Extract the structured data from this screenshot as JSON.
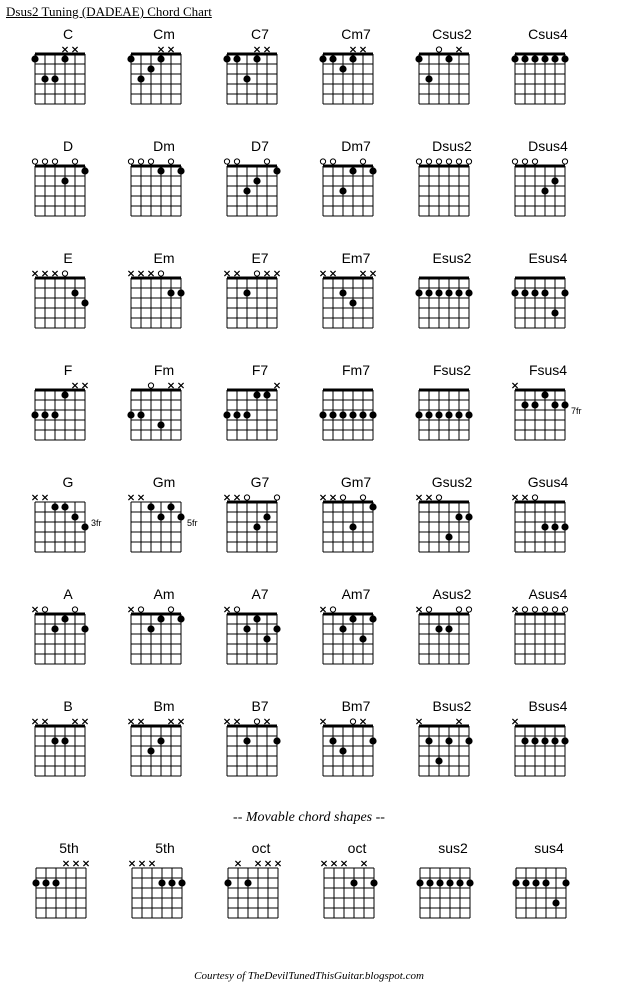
{
  "title": "Dsus2 Tuning (DADEAE) Chord Chart",
  "subheader": "-- Movable chord shapes --",
  "footer": "Courtesy of TheDevilTunedThisGuitar.blogspot.com",
  "styling": {
    "strings": 6,
    "frets": 5,
    "string_spacing": 10,
    "fret_spacing": 10,
    "dot_radius": 3.6,
    "line_color": "#000000",
    "background": "#ffffff",
    "nut_thickness": 3,
    "grid_thickness": 1,
    "marker_font_size": 8
  },
  "rows": [
    [
      {
        "name": "C",
        "markers": [
          "",
          "",
          "",
          "x",
          "x",
          ""
        ],
        "startFret": 0,
        "dots": [
          [
            1,
            1
          ],
          [
            1,
            4
          ],
          [
            3,
            2
          ],
          [
            3,
            3
          ]
        ],
        "fretLabel": ""
      },
      {
        "name": "Cm",
        "markers": [
          "",
          "",
          "",
          "x",
          "x",
          ""
        ],
        "startFret": 0,
        "dots": [
          [
            1,
            1
          ],
          [
            1,
            4
          ],
          [
            2,
            3
          ],
          [
            3,
            2
          ]
        ],
        "fretLabel": ""
      },
      {
        "name": "C7",
        "markers": [
          "",
          "",
          "",
          "x",
          "x",
          ""
        ],
        "startFret": 0,
        "dots": [
          [
            1,
            1
          ],
          [
            1,
            2
          ],
          [
            1,
            4
          ],
          [
            3,
            3
          ]
        ],
        "fretLabel": ""
      },
      {
        "name": "Cm7",
        "markers": [
          "",
          "",
          "",
          "x",
          "x",
          ""
        ],
        "startFret": 0,
        "dots": [
          [
            1,
            1
          ],
          [
            1,
            2
          ],
          [
            1,
            4
          ],
          [
            2,
            3
          ]
        ],
        "fretLabel": ""
      },
      {
        "name": "Csus2",
        "markers": [
          "",
          "",
          "o",
          "",
          "x",
          ""
        ],
        "startFret": 0,
        "dots": [
          [
            1,
            1
          ],
          [
            1,
            4
          ],
          [
            3,
            2
          ]
        ],
        "fretLabel": ""
      },
      {
        "name": "Csus4",
        "markers": [
          "",
          "",
          "",
          "",
          "",
          ""
        ],
        "startFret": 0,
        "dots": [
          [
            1,
            1
          ],
          [
            1,
            2
          ],
          [
            1,
            3
          ],
          [
            1,
            4
          ],
          [
            1,
            5
          ],
          [
            1,
            6
          ]
        ],
        "fretLabel": ""
      }
    ],
    [
      {
        "name": "D",
        "markers": [
          "o",
          "o",
          "o",
          "",
          "o",
          ""
        ],
        "startFret": 0,
        "dots": [
          [
            1,
            6
          ],
          [
            2,
            4
          ]
        ],
        "fretLabel": ""
      },
      {
        "name": "Dm",
        "markers": [
          "o",
          "o",
          "o",
          "",
          "o",
          ""
        ],
        "startFret": 0,
        "dots": [
          [
            1,
            4
          ],
          [
            1,
            6
          ]
        ],
        "fretLabel": ""
      },
      {
        "name": "D7",
        "markers": [
          "o",
          "o",
          "",
          "",
          "o",
          ""
        ],
        "startFret": 0,
        "dots": [
          [
            1,
            6
          ],
          [
            2,
            4
          ],
          [
            3,
            3
          ]
        ],
        "fretLabel": ""
      },
      {
        "name": "Dm7",
        "markers": [
          "o",
          "o",
          "",
          "",
          "o",
          ""
        ],
        "startFret": 0,
        "dots": [
          [
            1,
            4
          ],
          [
            1,
            6
          ],
          [
            3,
            3
          ]
        ],
        "fretLabel": ""
      },
      {
        "name": "Dsus2",
        "markers": [
          "o",
          "o",
          "o",
          "o",
          "o",
          "o"
        ],
        "startFret": 0,
        "dots": [],
        "fretLabel": ""
      },
      {
        "name": "Dsus4",
        "markers": [
          "o",
          "o",
          "o",
          "",
          "",
          "o"
        ],
        "startFret": 0,
        "dots": [
          [
            2,
            5
          ],
          [
            3,
            4
          ]
        ],
        "fretLabel": ""
      }
    ],
    [
      {
        "name": "E",
        "markers": [
          "x",
          "x",
          "x",
          "o",
          "",
          ""
        ],
        "startFret": 0,
        "dots": [
          [
            2,
            5
          ],
          [
            3,
            6
          ]
        ],
        "fretLabel": ""
      },
      {
        "name": "Em",
        "markers": [
          "x",
          "x",
          "x",
          "o",
          "",
          ""
        ],
        "startFret": 0,
        "dots": [
          [
            2,
            5
          ],
          [
            2,
            6
          ]
        ],
        "fretLabel": ""
      },
      {
        "name": "E7",
        "markers": [
          "x",
          "x",
          "",
          "o",
          "x",
          "x"
        ],
        "startFret": 0,
        "dots": [
          [
            2,
            3
          ]
        ],
        "fretLabel": ""
      },
      {
        "name": "Em7",
        "markers": [
          "x",
          "x",
          "",
          "",
          "x",
          "x"
        ],
        "startFret": 0,
        "dots": [
          [
            2,
            3
          ],
          [
            3,
            4
          ]
        ],
        "fretLabel": ""
      },
      {
        "name": "Esus2",
        "markers": [
          "",
          "",
          "",
          "",
          "",
          ""
        ],
        "startFret": 0,
        "dots": [
          [
            2,
            1
          ],
          [
            2,
            2
          ],
          [
            2,
            3
          ],
          [
            2,
            4
          ],
          [
            2,
            5
          ],
          [
            2,
            6
          ]
        ],
        "fretLabel": ""
      },
      {
        "name": "Esus4",
        "markers": [
          "",
          "",
          "",
          "",
          "",
          ""
        ],
        "startFret": 0,
        "dots": [
          [
            2,
            1
          ],
          [
            2,
            2
          ],
          [
            2,
            3
          ],
          [
            2,
            4
          ],
          [
            2,
            6
          ],
          [
            4,
            5
          ]
        ],
        "fretLabel": ""
      }
    ],
    [
      {
        "name": "F",
        "markers": [
          "",
          "",
          "",
          "",
          "x",
          "x"
        ],
        "startFret": 0,
        "dots": [
          [
            1,
            4
          ],
          [
            3,
            1
          ],
          [
            3,
            2
          ],
          [
            3,
            3
          ]
        ],
        "fretLabel": ""
      },
      {
        "name": "Fm",
        "markers": [
          "",
          "",
          "o",
          "",
          "x",
          "x"
        ],
        "startFret": 0,
        "dots": [
          [
            3,
            1
          ],
          [
            3,
            2
          ],
          [
            4,
            4
          ]
        ],
        "fretLabel": ""
      },
      {
        "name": "F7",
        "markers": [
          "",
          "",
          "",
          "",
          "",
          "x"
        ],
        "startFret": 0,
        "dots": [
          [
            1,
            4
          ],
          [
            1,
            5
          ],
          [
            3,
            1
          ],
          [
            3,
            2
          ],
          [
            3,
            3
          ]
        ],
        "fretLabel": ""
      },
      {
        "name": "Fm7",
        "markers": [
          "",
          "",
          "",
          "",
          "",
          ""
        ],
        "startFret": 0,
        "dots": [
          [
            3,
            1
          ],
          [
            3,
            2
          ],
          [
            3,
            3
          ],
          [
            3,
            4
          ],
          [
            3,
            5
          ],
          [
            3,
            6
          ]
        ],
        "fretLabel": ""
      },
      {
        "name": "Fsus2",
        "markers": [
          "",
          "",
          "",
          "",
          "",
          ""
        ],
        "startFret": 0,
        "dots": [
          [
            3,
            1
          ],
          [
            3,
            2
          ],
          [
            3,
            3
          ],
          [
            3,
            4
          ],
          [
            3,
            5
          ],
          [
            3,
            6
          ]
        ],
        "fretLabel": ""
      },
      {
        "name": "Fsus4",
        "markers": [
          "x",
          "",
          "",
          "",
          "",
          ""
        ],
        "startFret": 0,
        "dots": [
          [
            1,
            4
          ],
          [
            2,
            2
          ],
          [
            2,
            3
          ],
          [
            2,
            5
          ],
          [
            2,
            6
          ]
        ],
        "fretLabel": "7fr"
      }
    ],
    [
      {
        "name": "G",
        "markers": [
          "x",
          "x",
          "",
          "",
          "",
          ""
        ],
        "startFret": 1,
        "dots": [
          [
            1,
            3
          ],
          [
            1,
            4
          ],
          [
            2,
            5
          ],
          [
            3,
            6
          ]
        ],
        "fretLabel": "3fr"
      },
      {
        "name": "Gm",
        "markers": [
          "x",
          "x",
          "",
          "",
          "",
          ""
        ],
        "startFret": 1,
        "dots": [
          [
            1,
            3
          ],
          [
            1,
            5
          ],
          [
            2,
            4
          ],
          [
            2,
            6
          ]
        ],
        "fretLabel": "5fr"
      },
      {
        "name": "G7",
        "markers": [
          "x",
          "x",
          "o",
          "",
          "",
          "o"
        ],
        "startFret": 0,
        "dots": [
          [
            2,
            5
          ],
          [
            3,
            4
          ]
        ],
        "fretLabel": ""
      },
      {
        "name": "Gm7",
        "markers": [
          "x",
          "x",
          "o",
          "",
          "o",
          ""
        ],
        "startFret": 0,
        "dots": [
          [
            1,
            6
          ],
          [
            3,
            4
          ]
        ],
        "fretLabel": ""
      },
      {
        "name": "Gsus2",
        "markers": [
          "x",
          "x",
          "o",
          "",
          "",
          ""
        ],
        "startFret": 0,
        "dots": [
          [
            2,
            5
          ],
          [
            2,
            6
          ],
          [
            4,
            4
          ]
        ],
        "fretLabel": ""
      },
      {
        "name": "Gsus4",
        "markers": [
          "x",
          "x",
          "o",
          "",
          "",
          ""
        ],
        "startFret": 0,
        "dots": [
          [
            3,
            4
          ],
          [
            3,
            5
          ],
          [
            3,
            6
          ]
        ],
        "fretLabel": ""
      }
    ],
    [
      {
        "name": "A",
        "markers": [
          "x",
          "o",
          "",
          "",
          "o",
          ""
        ],
        "startFret": 0,
        "dots": [
          [
            1,
            4
          ],
          [
            2,
            3
          ],
          [
            2,
            6
          ]
        ],
        "fretLabel": ""
      },
      {
        "name": "Am",
        "markers": [
          "x",
          "o",
          "",
          "",
          "o",
          ""
        ],
        "startFret": 0,
        "dots": [
          [
            1,
            4
          ],
          [
            1,
            6
          ],
          [
            2,
            3
          ]
        ],
        "fretLabel": ""
      },
      {
        "name": "A7",
        "markers": [
          "x",
          "o",
          "",
          "",
          "",
          ""
        ],
        "startFret": 0,
        "dots": [
          [
            1,
            4
          ],
          [
            2,
            3
          ],
          [
            2,
            6
          ],
          [
            3,
            5
          ]
        ],
        "fretLabel": ""
      },
      {
        "name": "Am7",
        "markers": [
          "x",
          "o",
          "",
          "",
          "",
          ""
        ],
        "startFret": 0,
        "dots": [
          [
            1,
            4
          ],
          [
            1,
            6
          ],
          [
            2,
            3
          ],
          [
            3,
            5
          ]
        ],
        "fretLabel": ""
      },
      {
        "name": "Asus2",
        "markers": [
          "x",
          "o",
          "",
          "",
          "o",
          "o"
        ],
        "startFret": 0,
        "dots": [
          [
            2,
            3
          ],
          [
            2,
            4
          ]
        ],
        "fretLabel": ""
      },
      {
        "name": "Asus4",
        "markers": [
          "x",
          "o",
          "o",
          "o",
          "o",
          "o"
        ],
        "startFret": 0,
        "dots": [],
        "fretLabel": ""
      }
    ],
    [
      {
        "name": "B",
        "markers": [
          "x",
          "x",
          "",
          "",
          "x",
          "x"
        ],
        "startFret": 0,
        "dots": [
          [
            2,
            3
          ],
          [
            2,
            4
          ]
        ],
        "fretLabel": ""
      },
      {
        "name": "Bm",
        "markers": [
          "x",
          "x",
          "",
          "",
          "x",
          "x"
        ],
        "startFret": 0,
        "dots": [
          [
            2,
            4
          ],
          [
            3,
            3
          ]
        ],
        "fretLabel": ""
      },
      {
        "name": "B7",
        "markers": [
          "x",
          "x",
          "",
          "o",
          "x",
          ""
        ],
        "startFret": 0,
        "dots": [
          [
            2,
            3
          ],
          [
            2,
            6
          ]
        ],
        "fretLabel": ""
      },
      {
        "name": "Bm7",
        "markers": [
          "x",
          "",
          "",
          "o",
          "x",
          ""
        ],
        "startFret": 0,
        "dots": [
          [
            2,
            2
          ],
          [
            2,
            6
          ],
          [
            3,
            3
          ]
        ],
        "fretLabel": ""
      },
      {
        "name": "Bsus2",
        "markers": [
          "x",
          "",
          "",
          "",
          "x",
          ""
        ],
        "startFret": 0,
        "dots": [
          [
            2,
            2
          ],
          [
            2,
            4
          ],
          [
            2,
            6
          ],
          [
            4,
            3
          ]
        ],
        "fretLabel": ""
      },
      {
        "name": "Bsus4",
        "markers": [
          "x",
          "",
          "",
          "",
          "",
          ""
        ],
        "startFret": 0,
        "dots": [
          [
            2,
            2
          ],
          [
            2,
            3
          ],
          [
            2,
            4
          ],
          [
            2,
            5
          ],
          [
            2,
            6
          ]
        ],
        "fretLabel": ""
      }
    ]
  ],
  "movable": [
    {
      "name": "5th",
      "markers": [
        "",
        "",
        "",
        "x",
        "x",
        "x"
      ],
      "startFret": 1,
      "dots": [
        [
          2,
          1
        ],
        [
          2,
          2
        ],
        [
          2,
          3
        ]
      ],
      "fretLabel": ""
    },
    {
      "name": "5th",
      "markers": [
        "x",
        "x",
        "x",
        "",
        "",
        ""
      ],
      "startFret": 1,
      "dots": [
        [
          2,
          4
        ],
        [
          2,
          5
        ],
        [
          2,
          6
        ]
      ],
      "fretLabel": ""
    },
    {
      "name": "oct",
      "markers": [
        "",
        "x",
        "",
        "x",
        "x",
        "x"
      ],
      "startFret": 1,
      "dots": [
        [
          2,
          1
        ],
        [
          2,
          3
        ]
      ],
      "fretLabel": ""
    },
    {
      "name": "oct",
      "markers": [
        "x",
        "x",
        "x",
        "",
        "x",
        ""
      ],
      "startFret": 1,
      "dots": [
        [
          2,
          4
        ],
        [
          2,
          6
        ]
      ],
      "fretLabel": ""
    },
    {
      "name": "sus2",
      "markers": [
        "",
        "",
        "",
        "",
        "",
        ""
      ],
      "startFret": 1,
      "dots": [
        [
          2,
          1
        ],
        [
          2,
          2
        ],
        [
          2,
          3
        ],
        [
          2,
          4
        ],
        [
          2,
          5
        ],
        [
          2,
          6
        ]
      ],
      "fretLabel": ""
    },
    {
      "name": "sus4",
      "markers": [
        "",
        "",
        "",
        "",
        "",
        ""
      ],
      "startFret": 1,
      "dots": [
        [
          2,
          1
        ],
        [
          2,
          2
        ],
        [
          2,
          3
        ],
        [
          2,
          4
        ],
        [
          2,
          6
        ],
        [
          4,
          5
        ]
      ],
      "fretLabel": ""
    }
  ]
}
